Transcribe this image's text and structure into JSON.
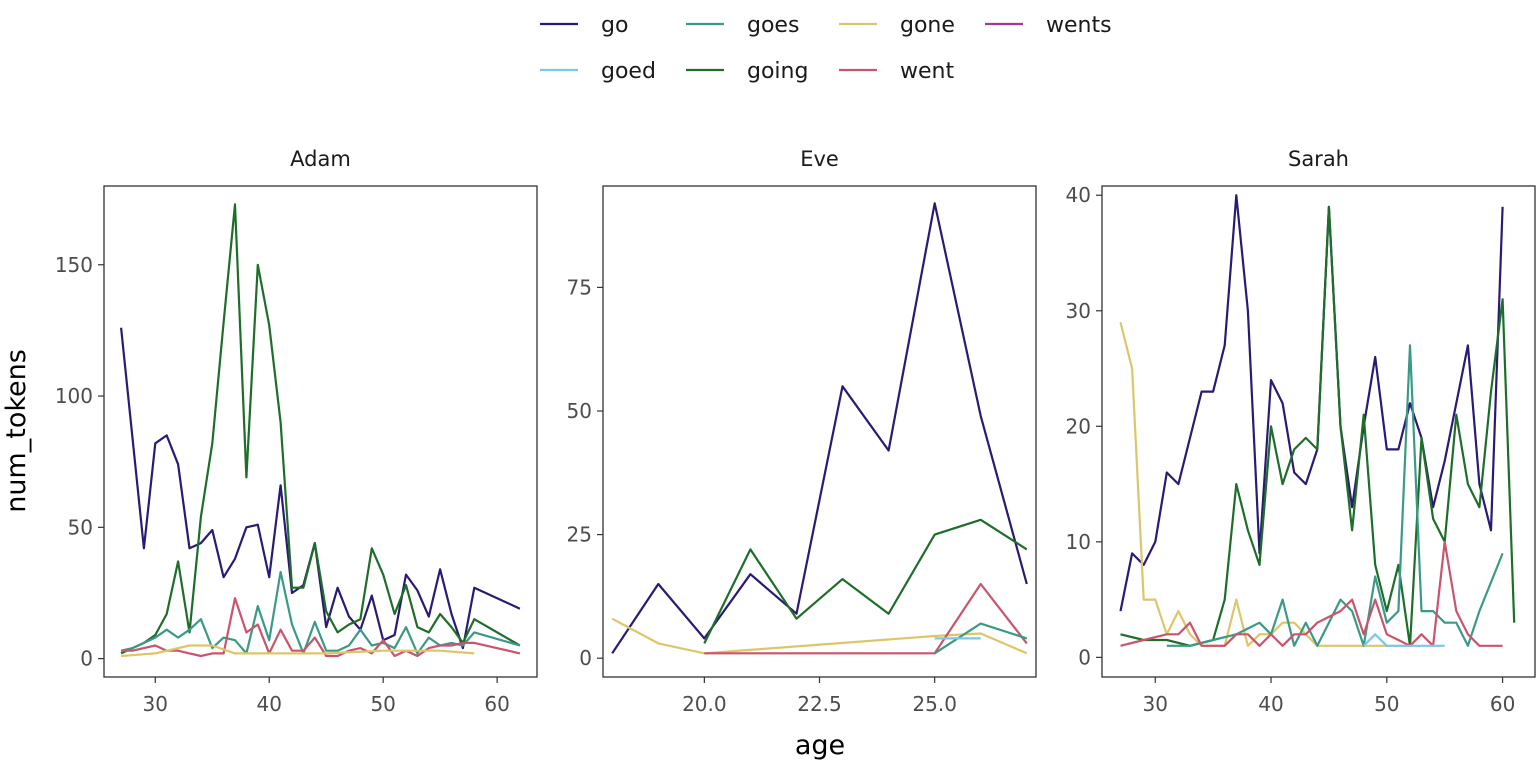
{
  "chart_data": {
    "type": "line",
    "xlabel": "age",
    "ylabel": "num_tokens",
    "grid": false,
    "legend_position": "top",
    "series_colors": {
      "go": "#2a1a73",
      "goed": "#7cc6e8",
      "goes": "#3a9a85",
      "going": "#1e6e2a",
      "gone": "#dcc66a",
      "went": "#c9556d",
      "wents": "#a0398f"
    },
    "legend": [
      [
        "go",
        "goes",
        "gone",
        "wents"
      ],
      [
        "goed",
        "going",
        "went"
      ]
    ],
    "panels": [
      {
        "title": "Adam",
        "xlim": [
          25.5,
          63.5
        ],
        "ylim": [
          -7,
          180
        ],
        "xticks": [
          30,
          40,
          50,
          60
        ],
        "yticks": [
          0,
          50,
          100,
          150
        ],
        "series": [
          {
            "name": "go",
            "x": [
              27,
              29,
              30,
              31,
              32,
              33,
              34,
              35,
              36,
              37,
              38,
              39,
              40,
              41,
              42,
              43,
              44,
              45,
              46,
              47,
              48,
              49,
              50,
              51,
              52,
              53,
              54,
              55,
              56,
              57,
              58,
              62
            ],
            "y": [
              126,
              42,
              82,
              85,
              74,
              42,
              44,
              49,
              31,
              38,
              50,
              51,
              31,
              66,
              25,
              28,
              44,
              12,
              27,
              16,
              11,
              24,
              7,
              9,
              32,
              26,
              16,
              34,
              17,
              4,
              27,
              19
            ]
          },
          {
            "name": "going",
            "x": [
              27,
              28,
              29,
              30,
              31,
              32,
              33,
              34,
              35,
              36,
              37,
              38,
              39,
              40,
              41,
              42,
              43,
              44,
              45,
              46,
              47,
              48,
              49,
              50,
              51,
              52,
              53,
              54,
              55,
              56,
              57,
              58,
              62
            ],
            "y": [
              2,
              4,
              6,
              9,
              17,
              37,
              10,
              54,
              82,
              128,
              173,
              69,
              150,
              127,
              90,
              27,
              27,
              44,
              18,
              10,
              13,
              15,
              42,
              32,
              17,
              28,
              12,
              10,
              17,
              12,
              6,
              15,
              5
            ]
          },
          {
            "name": "goes",
            "x": [
              27,
              28,
              29,
              30,
              31,
              32,
              33,
              34,
              35,
              36,
              37,
              38,
              39,
              40,
              41,
              42,
              43,
              44,
              45,
              46,
              47,
              48,
              49,
              50,
              51,
              52,
              53,
              54,
              55,
              56,
              57,
              58,
              62
            ],
            "y": [
              3,
              4,
              6,
              8,
              11,
              8,
              11,
              15,
              4,
              8,
              7,
              2,
              20,
              7,
              33,
              13,
              2,
              14,
              3,
              3,
              5,
              11,
              5,
              6,
              4,
              12,
              2,
              8,
              5,
              6,
              5,
              10,
              5
            ]
          },
          {
            "name": "went",
            "x": [
              27,
              28,
              29,
              30,
              31,
              32,
              33,
              34,
              35,
              36,
              37,
              38,
              39,
              40,
              41,
              42,
              43,
              44,
              45,
              46,
              47,
              48,
              49,
              50,
              51,
              52,
              53,
              54,
              55,
              56,
              57,
              58,
              62
            ],
            "y": [
              3,
              3,
              4,
              5,
              3,
              3,
              2,
              1,
              2,
              2,
              23,
              10,
              13,
              2,
              11,
              3,
              3,
              8,
              1,
              1,
              3,
              4,
              2,
              7,
              1,
              3,
              1,
              4,
              5,
              5,
              6,
              6,
              2
            ]
          },
          {
            "name": "gone",
            "x": [
              27,
              30,
              33,
              35,
              37,
              40,
              45,
              50,
              55,
              58
            ],
            "y": [
              1,
              2,
              5,
              5,
              2,
              2,
              2,
              3,
              3,
              2
            ]
          }
        ]
      },
      {
        "title": "Eve",
        "xlim": [
          17.8,
          27.2
        ],
        "ylim": [
          -3.8,
          95.5
        ],
        "xticks": [
          20.0,
          22.5,
          25.0
        ],
        "xtick_labels": [
          "20.0",
          "22.5",
          "25.0"
        ],
        "yticks": [
          0,
          25,
          50,
          75
        ],
        "series": [
          {
            "name": "go",
            "x": [
              18,
              19,
              20,
              21,
              22,
              23,
              24,
              25,
              26,
              27
            ],
            "y": [
              1,
              15,
              4,
              17,
              9,
              55,
              42,
              92,
              49,
              15
            ]
          },
          {
            "name": "going",
            "x": [
              20,
              21,
              22,
              23,
              24,
              25,
              26,
              27
            ],
            "y": [
              3,
              22,
              8,
              16,
              9,
              25,
              28,
              22
            ]
          },
          {
            "name": "gone",
            "x": [
              18,
              19,
              20,
              25,
              26,
              27
            ],
            "y": [
              8,
              3,
              1,
              4.5,
              5,
              1
            ]
          },
          {
            "name": "went",
            "x": [
              20,
              25,
              26,
              27
            ],
            "y": [
              1,
              1,
              15,
              3
            ]
          },
          {
            "name": "goes",
            "x": [
              25,
              26,
              27
            ],
            "y": [
              1,
              7,
              4
            ]
          },
          {
            "name": "goed",
            "x": [
              25,
              26
            ],
            "y": [
              4,
              4
            ]
          }
        ]
      },
      {
        "title": "Sarah",
        "xlim": [
          25.4,
          62.8
        ],
        "ylim": [
          -1.7,
          40.8
        ],
        "xticks": [
          30,
          40,
          50,
          60
        ],
        "yticks": [
          0,
          10,
          20,
          30,
          40
        ],
        "series": [
          {
            "name": "go",
            "x": [
              27,
              28,
              29,
              30,
              31,
              32,
              33,
              34,
              35,
              36,
              37,
              38,
              39,
              40,
              41,
              42,
              43,
              44,
              45,
              46,
              47,
              48,
              49,
              50,
              51,
              52,
              53,
              54,
              55,
              56,
              57,
              58,
              59,
              60
            ],
            "y": [
              4,
              9,
              8,
              10,
              16,
              15,
              19,
              23,
              23,
              27,
              40,
              30,
              9,
              24,
              22,
              16,
              15,
              18,
              39,
              20,
              13,
              20,
              26,
              18,
              18,
              22,
              19,
              13,
              17,
              22,
              27,
              15,
              11,
              39
            ]
          },
          {
            "name": "going",
            "x": [
              27,
              29,
              31,
              33,
              35,
              36,
              37,
              38,
              39,
              40,
              41,
              42,
              43,
              44,
              45,
              46,
              47,
              48,
              49,
              50,
              51,
              52,
              53,
              54,
              55,
              56,
              57,
              58,
              59,
              60,
              61
            ],
            "y": [
              2,
              1.5,
              1.5,
              1,
              1.5,
              5,
              15,
              11,
              8,
              20,
              15,
              18,
              19,
              18,
              39,
              20,
              11,
              21,
              8,
              4,
              8,
              1,
              19,
              12,
              10,
              21,
              15,
              13,
              23,
              31,
              3
            ]
          },
          {
            "name": "gone",
            "x": [
              27,
              28,
              29,
              30,
              31,
              32,
              33,
              34,
              35,
              36,
              37,
              38,
              39,
              40,
              41,
              42,
              43,
              44,
              45,
              46,
              47,
              48,
              49,
              50,
              51,
              52,
              53
            ],
            "y": [
              29,
              25,
              5,
              5,
              2,
              4,
              2,
              1,
              1,
              1,
              5,
              1,
              2,
              2,
              3,
              3,
              2,
              1,
              1,
              1,
              1,
              1,
              1,
              1,
              1,
              1,
              2
            ]
          },
          {
            "name": "goes",
            "x": [
              31,
              33,
              35,
              37,
              38,
              39,
              40,
              41,
              42,
              43,
              44,
              45,
              46,
              47,
              48,
              49,
              50,
              51,
              52,
              53,
              54,
              55,
              56,
              57,
              58,
              60
            ],
            "y": [
              1,
              1,
              1.5,
              2,
              2.5,
              3,
              2,
              5,
              1,
              3,
              1,
              3,
              5,
              4,
              1,
              7,
              3,
              4,
              27,
              4,
              4,
              3,
              3,
              1,
              4,
              9
            ]
          },
          {
            "name": "went",
            "x": [
              27,
              29,
              31,
              32,
              33,
              34,
              35,
              36,
              37,
              38,
              39,
              40,
              41,
              42,
              43,
              44,
              45,
              46,
              47,
              48,
              49,
              50,
              51,
              52,
              53,
              54,
              55,
              56,
              57,
              58,
              59,
              60
            ],
            "y": [
              1,
              1.5,
              2,
              2,
              3,
              1,
              1,
              1,
              2,
              2,
              1,
              2,
              1,
              2,
              2,
              3,
              3.5,
              4,
              5,
              2,
              5,
              2,
              1.5,
              1,
              2,
              1,
              10,
              4,
              2,
              1,
              1,
              1
            ]
          },
          {
            "name": "goed",
            "x": [
              48,
              49,
              50,
              51,
              52,
              53,
              54,
              55
            ],
            "y": [
              1,
              2,
              1,
              1,
              1,
              1,
              1,
              1
            ]
          }
        ]
      }
    ]
  }
}
